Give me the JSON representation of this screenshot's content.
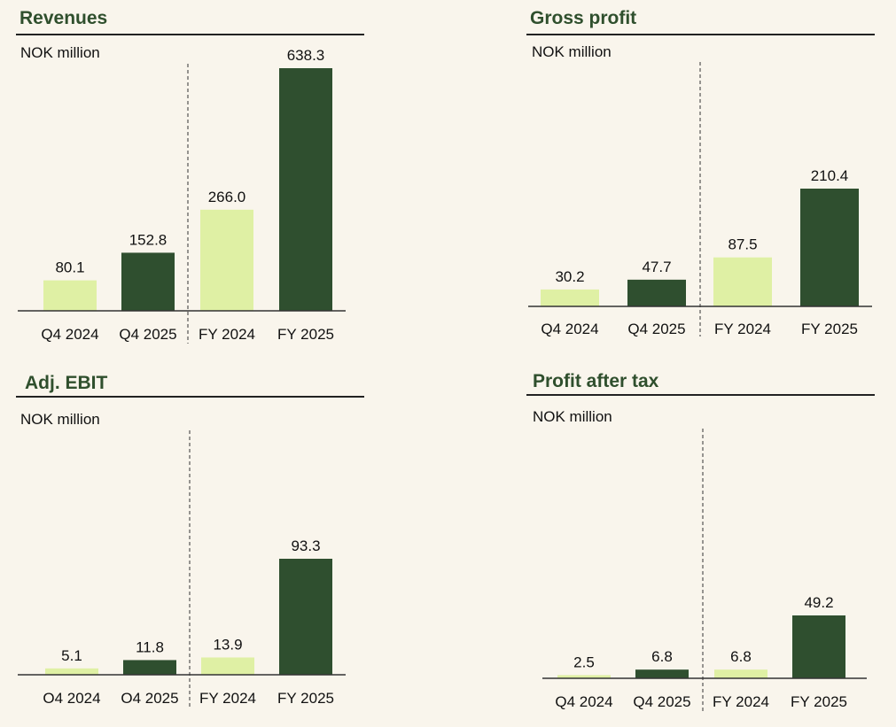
{
  "colors": {
    "light": "#dff0a4",
    "dark": "#2f4f2f",
    "title": "#2f4f2d",
    "background": "#f9f5ec"
  },
  "panels": [
    {
      "title": "Revenues",
      "unit": "NOK million"
    },
    {
      "title": "Gross profit",
      "unit": "NOK million"
    },
    {
      "title": "Adj. EBIT",
      "unit": "NOK million"
    },
    {
      "title": "Profit after tax",
      "unit": "NOK million"
    }
  ],
  "chart_data": [
    {
      "type": "bar",
      "title": "Revenues",
      "ylabel": "NOK million",
      "categories": [
        "Q4 2024",
        "Q4 2025",
        "FY 2024",
        "FY 2025"
      ],
      "values": [
        80.1,
        152.8,
        266.0,
        638.3
      ],
      "value_labels": [
        "80.1",
        "152.8",
        "266.0",
        "638.3"
      ],
      "bar_colors": [
        "light",
        "dark",
        "light",
        "dark"
      ],
      "divider_after_index": 1,
      "grid": false
    },
    {
      "type": "bar",
      "title": "Gross profit",
      "ylabel": "NOK million",
      "categories": [
        "Q4 2024",
        "Q4 2025",
        "FY 2024",
        "FY 2025"
      ],
      "values": [
        30.2,
        47.7,
        87.5,
        210.4
      ],
      "value_labels": [
        "30.2",
        "47.7",
        "87.5",
        "210.4"
      ],
      "bar_colors": [
        "light",
        "dark",
        "light",
        "dark"
      ],
      "divider_after_index": 1,
      "grid": false
    },
    {
      "type": "bar",
      "title": "Adj. EBIT",
      "ylabel": "NOK million",
      "categories": [
        "O4 2024",
        "O4 2025",
        "FY 2024",
        "FY 2025"
      ],
      "values": [
        5.1,
        11.8,
        13.9,
        93.3
      ],
      "value_labels": [
        "5.1",
        "11.8",
        "13.9",
        "93.3"
      ],
      "bar_colors": [
        "light",
        "dark",
        "light",
        "dark"
      ],
      "divider_after_index": 1,
      "grid": false
    },
    {
      "type": "bar",
      "title": "Profit after tax",
      "ylabel": "NOK million",
      "categories": [
        "Q4 2024",
        "Q4 2025",
        "FY 2024",
        "FY 2025"
      ],
      "values": [
        2.5,
        6.8,
        6.8,
        49.2
      ],
      "value_labels": [
        "2.5",
        "6.8",
        "6.8",
        "49.2"
      ],
      "bar_colors": [
        "light",
        "dark",
        "light",
        "dark"
      ],
      "divider_after_index": 1,
      "grid": false
    }
  ]
}
